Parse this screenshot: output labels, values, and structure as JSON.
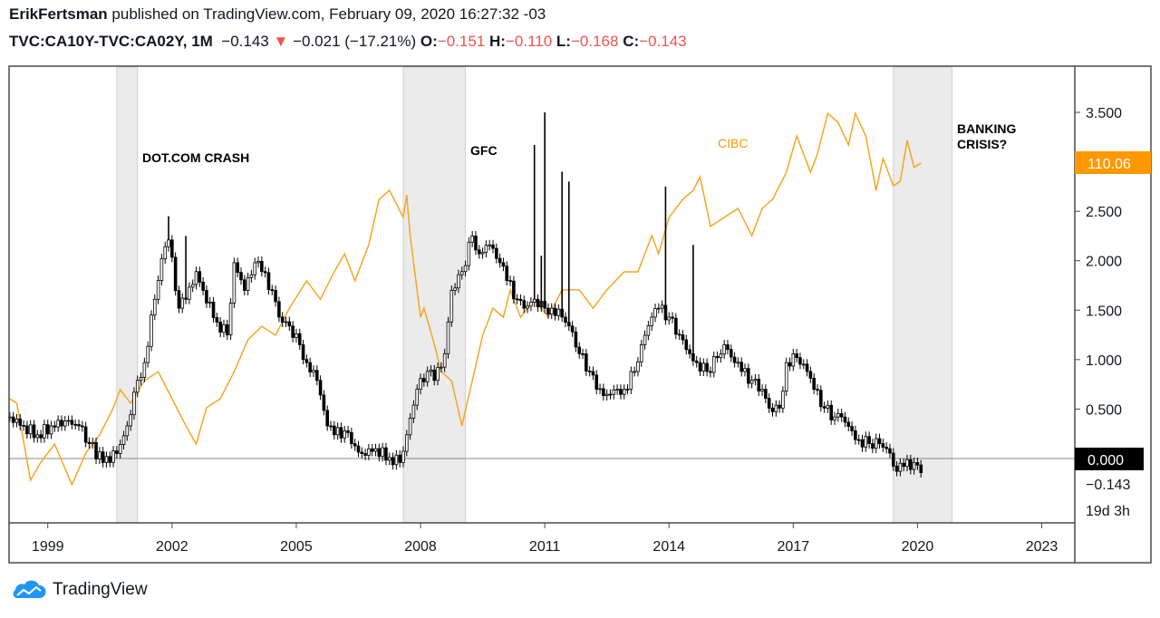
{
  "header": {
    "author": "ErikFertsman",
    "published_text": "published on TradingView.com, February 09, 2020 16:27:32 -03",
    "symbol": "TVC:CA10Y-TVC:CA02Y, 1M",
    "last": "−0.143",
    "change": "−0.021 (−17.21%)",
    "change_direction": "down",
    "o_label": "O:",
    "o_value": "−0.151",
    "h_label": "H:",
    "h_value": "−0.110",
    "l_label": "L:",
    "l_value": "−0.168",
    "c_label": "C:",
    "c_value": "−0.143"
  },
  "footer": {
    "brand": "TradingView",
    "logo_icon": "tradingview-cloud-icon"
  },
  "colors": {
    "spread": "#000000",
    "cibc": "#f5a623",
    "cibc_label": "#ff9800",
    "negative": "#ef5350",
    "shade": "#ebebeb"
  },
  "chart_data": {
    "type": "candlestick+line",
    "x_ticks": [
      "1999",
      "2002",
      "2005",
      "2008",
      "2011",
      "2014",
      "2017",
      "2020",
      "2023"
    ],
    "y_ticks": [
      "3.500",
      "2.500",
      "2.000",
      "1.500",
      "1.000",
      "0.500",
      "0.000"
    ],
    "ylim": [
      -0.65,
      4.1
    ],
    "price_labels": {
      "zero": "0.000",
      "last_spread": "−0.143",
      "countdown": "19d 3h",
      "cibc_last": "110.06"
    },
    "annotations": [
      {
        "text": "DOT.COM CRASH",
        "period": [
          "2000-09",
          "2001-03"
        ]
      },
      {
        "text": "GFC",
        "period": [
          "2007-08",
          "2009-02"
        ]
      },
      {
        "text": "BANKING CRISIS?",
        "period": [
          "2019-06",
          "2020-11"
        ]
      }
    ],
    "series": [
      {
        "name": "TVC:CA10Y-TVC:CA02Y",
        "kind": "candles",
        "closes": [
          [
            "1998-02",
            0.42
          ],
          [
            "1998-06",
            0.33
          ],
          [
            "1998-10",
            0.24
          ],
          [
            "1999-02",
            0.33
          ],
          [
            "1999-06",
            0.38
          ],
          [
            "1999-10",
            0.33
          ],
          [
            "2000-01",
            0.15
          ],
          [
            "2000-05",
            -0.04
          ],
          [
            "2000-09",
            0.05
          ],
          [
            "2000-12",
            0.33
          ],
          [
            "2001-03",
            0.79
          ],
          [
            "2001-05",
            0.97
          ],
          [
            "2001-08",
            1.61
          ],
          [
            "2001-10",
            2.02
          ],
          [
            "2001-12",
            2.21
          ],
          [
            "2002-03",
            1.52
          ],
          [
            "2002-05",
            1.61
          ],
          [
            "2002-08",
            1.89
          ],
          [
            "2002-10",
            1.7
          ],
          [
            "2003-02",
            1.38
          ],
          [
            "2003-05",
            1.25
          ],
          [
            "2003-07",
            1.98
          ],
          [
            "2003-10",
            1.7
          ],
          [
            "2004-01",
            1.98
          ],
          [
            "2004-03",
            1.89
          ],
          [
            "2004-06",
            1.7
          ],
          [
            "2004-08",
            1.43
          ],
          [
            "2004-11",
            1.34
          ],
          [
            "2005-02",
            1.15
          ],
          [
            "2005-04",
            0.97
          ],
          [
            "2005-07",
            0.79
          ],
          [
            "2005-10",
            0.33
          ],
          [
            "2005-12",
            0.24
          ],
          [
            "2006-03",
            0.28
          ],
          [
            "2006-05",
            0.15
          ],
          [
            "2006-08",
            0.05
          ],
          [
            "2006-12",
            0.1
          ],
          [
            "2007-04",
            0.01
          ],
          [
            "2007-07",
            -0.04
          ],
          [
            "2007-09",
            0.24
          ],
          [
            "2007-12",
            0.7
          ],
          [
            "2008-03",
            0.88
          ],
          [
            "2008-05",
            0.79
          ],
          [
            "2008-08",
            1.06
          ],
          [
            "2008-10",
            1.7
          ],
          [
            "2009-01",
            1.89
          ],
          [
            "2009-04",
            2.25
          ],
          [
            "2009-06",
            2.07
          ],
          [
            "2009-09",
            2.16
          ],
          [
            "2009-12",
            1.98
          ],
          [
            "2010-02",
            1.8
          ],
          [
            "2010-05",
            1.61
          ],
          [
            "2010-07",
            1.52
          ],
          [
            "2010-10",
            1.61
          ],
          [
            "2011-01",
            1.52
          ],
          [
            "2011-03",
            1.52
          ],
          [
            "2011-06",
            1.43
          ],
          [
            "2011-08",
            1.34
          ],
          [
            "2011-11",
            1.06
          ],
          [
            "2012-02",
            0.88
          ],
          [
            "2012-04",
            0.7
          ],
          [
            "2012-07",
            0.65
          ],
          [
            "2012-10",
            0.7
          ],
          [
            "2012-12",
            0.7
          ],
          [
            "2013-03",
            0.88
          ],
          [
            "2013-05",
            1.15
          ],
          [
            "2013-08",
            1.43
          ],
          [
            "2013-10",
            1.52
          ],
          [
            "2014-01",
            1.43
          ],
          [
            "2014-04",
            1.25
          ],
          [
            "2014-07",
            1.06
          ],
          [
            "2014-09",
            0.97
          ],
          [
            "2014-12",
            0.88
          ],
          [
            "2015-03",
            1.02
          ],
          [
            "2015-05",
            1.15
          ],
          [
            "2015-08",
            0.97
          ],
          [
            "2015-10",
            0.88
          ],
          [
            "2016-01",
            0.79
          ],
          [
            "2016-04",
            0.7
          ],
          [
            "2016-06",
            0.51
          ],
          [
            "2016-09",
            0.51
          ],
          [
            "2016-11",
            0.97
          ],
          [
            "2017-02",
            1.02
          ],
          [
            "2017-05",
            0.88
          ],
          [
            "2017-07",
            0.7
          ],
          [
            "2017-10",
            0.51
          ],
          [
            "2018-01",
            0.42
          ],
          [
            "2018-03",
            0.42
          ],
          [
            "2018-06",
            0.28
          ],
          [
            "2018-08",
            0.19
          ],
          [
            "2018-11",
            0.15
          ],
          [
            "2019-02",
            0.15
          ],
          [
            "2019-04",
            0.1
          ],
          [
            "2019-07",
            -0.13
          ],
          [
            "2019-09",
            -0.08
          ],
          [
            "2019-12",
            -0.04
          ],
          [
            "2020-02",
            -0.143
          ]
        ],
        "spikes": [
          [
            "2001-12",
            2.45
          ],
          [
            "2002-05",
            2.25
          ],
          [
            "2010-10",
            3.17
          ],
          [
            "2011-01",
            3.5
          ],
          [
            "2011-06",
            2.9
          ],
          [
            "2011-08",
            2.8
          ],
          [
            "2013-12",
            2.75
          ],
          [
            "2014-08",
            2.16
          ],
          [
            "2010-12",
            2.05
          ]
        ]
      },
      {
        "name": "CIBC",
        "kind": "line",
        "values": [
          [
            "1998-02",
            47.3
          ],
          [
            "1998-04",
            46.1
          ],
          [
            "1998-08",
            25.6
          ],
          [
            "1998-11",
            30.4
          ],
          [
            "1999-03",
            35.2
          ],
          [
            "1999-08",
            24.4
          ],
          [
            "1999-12",
            32.8
          ],
          [
            "2000-04",
            37.6
          ],
          [
            "2000-08",
            44.9
          ],
          [
            "2000-10",
            49.7
          ],
          [
            "2001-01",
            46.1
          ],
          [
            "2001-05",
            52.1
          ],
          [
            "2001-09",
            54.5
          ],
          [
            "2002-01",
            47.3
          ],
          [
            "2002-05",
            40.1
          ],
          [
            "2002-08",
            35.2
          ],
          [
            "2002-11",
            44.9
          ],
          [
            "2003-03",
            47.3
          ],
          [
            "2003-07",
            54.5
          ],
          [
            "2003-11",
            63.0
          ],
          [
            "2004-03",
            66.6
          ],
          [
            "2004-07",
            64.2
          ],
          [
            "2004-11",
            71.4
          ],
          [
            "2005-04",
            78.7
          ],
          [
            "2005-08",
            73.8
          ],
          [
            "2005-12",
            81.1
          ],
          [
            "2006-03",
            85.9
          ],
          [
            "2006-06",
            78.7
          ],
          [
            "2006-10",
            88.3
          ],
          [
            "2007-01",
            100.4
          ],
          [
            "2007-04",
            102.8
          ],
          [
            "2007-08",
            95.6
          ],
          [
            "2007-09",
            101.6
          ],
          [
            "2007-10",
            90.7
          ],
          [
            "2008-01",
            69.0
          ],
          [
            "2008-02",
            71.4
          ],
          [
            "2008-05",
            61.8
          ],
          [
            "2008-07",
            54.5
          ],
          [
            "2008-10",
            52.1
          ],
          [
            "2009-01",
            40.1
          ],
          [
            "2009-04",
            52.1
          ],
          [
            "2009-07",
            64.2
          ],
          [
            "2009-10",
            71.4
          ],
          [
            "2010-01",
            69.0
          ],
          [
            "2010-03",
            76.3
          ],
          [
            "2010-06",
            69.0
          ],
          [
            "2010-10",
            73.8
          ],
          [
            "2011-02",
            69.0
          ],
          [
            "2011-06",
            76.3
          ],
          [
            "2011-11",
            76.3
          ],
          [
            "2012-03",
            71.4
          ],
          [
            "2012-07",
            76.3
          ],
          [
            "2012-12",
            81.1
          ],
          [
            "2013-04",
            81.1
          ],
          [
            "2013-08",
            90.7
          ],
          [
            "2013-10",
            85.9
          ],
          [
            "2014-01",
            95.6
          ],
          [
            "2014-05",
            100.4
          ],
          [
            "2014-08",
            102.8
          ],
          [
            "2014-10",
            106.4
          ],
          [
            "2015-01",
            93.2
          ],
          [
            "2015-05",
            95.6
          ],
          [
            "2015-09",
            98.0
          ],
          [
            "2016-01",
            90.7
          ],
          [
            "2016-04",
            98.0
          ],
          [
            "2016-07",
            100.4
          ],
          [
            "2016-11",
            107.6
          ],
          [
            "2017-02",
            117.3
          ],
          [
            "2017-06",
            107.6
          ],
          [
            "2017-08",
            112.5
          ],
          [
            "2017-11",
            123.3
          ],
          [
            "2018-02",
            120.9
          ],
          [
            "2018-05",
            114.9
          ],
          [
            "2018-07",
            123.3
          ],
          [
            "2018-10",
            117.3
          ],
          [
            "2019-01",
            102.8
          ],
          [
            "2019-03",
            111.3
          ],
          [
            "2019-06",
            104.0
          ],
          [
            "2019-08",
            105.2
          ],
          [
            "2019-10",
            116.1
          ],
          [
            "2019-12",
            108.9
          ],
          [
            "2020-02",
            110.06
          ]
        ]
      }
    ]
  }
}
